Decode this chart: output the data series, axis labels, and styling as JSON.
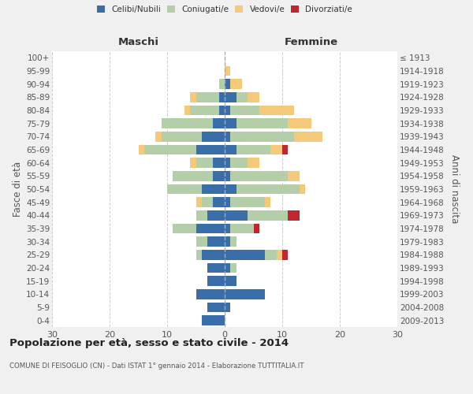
{
  "age_groups": [
    "0-4",
    "5-9",
    "10-14",
    "15-19",
    "20-24",
    "25-29",
    "30-34",
    "35-39",
    "40-44",
    "45-49",
    "50-54",
    "55-59",
    "60-64",
    "65-69",
    "70-74",
    "75-79",
    "80-84",
    "85-89",
    "90-94",
    "95-99",
    "100+"
  ],
  "birth_years": [
    "2009-2013",
    "2004-2008",
    "1999-2003",
    "1994-1998",
    "1989-1993",
    "1984-1988",
    "1979-1983",
    "1974-1978",
    "1969-1973",
    "1964-1968",
    "1959-1963",
    "1954-1958",
    "1949-1953",
    "1944-1948",
    "1939-1943",
    "1934-1938",
    "1929-1933",
    "1924-1928",
    "1919-1923",
    "1914-1918",
    "≤ 1913"
  ],
  "maschi": {
    "celibi": [
      4,
      3,
      5,
      3,
      3,
      4,
      3,
      5,
      3,
      2,
      4,
      2,
      2,
      5,
      4,
      2,
      1,
      1,
      0,
      0,
      0
    ],
    "coniugati": [
      0,
      0,
      0,
      0,
      0,
      1,
      2,
      4,
      2,
      2,
      6,
      7,
      3,
      9,
      7,
      9,
      5,
      4,
      1,
      0,
      0
    ],
    "vedovi": [
      0,
      0,
      0,
      0,
      0,
      0,
      0,
      0,
      0,
      1,
      0,
      0,
      1,
      1,
      1,
      0,
      1,
      1,
      0,
      0,
      0
    ],
    "divorziati": [
      0,
      0,
      0,
      0,
      0,
      0,
      0,
      0,
      0,
      0,
      0,
      0,
      0,
      0,
      0,
      0,
      0,
      0,
      0,
      0,
      0
    ]
  },
  "femmine": {
    "nubili": [
      0,
      1,
      7,
      2,
      1,
      7,
      1,
      1,
      4,
      1,
      2,
      1,
      1,
      2,
      1,
      2,
      1,
      2,
      1,
      0,
      0
    ],
    "coniugate": [
      0,
      0,
      0,
      0,
      1,
      2,
      1,
      4,
      7,
      6,
      11,
      10,
      3,
      6,
      11,
      9,
      5,
      2,
      0,
      0,
      0
    ],
    "vedove": [
      0,
      0,
      0,
      0,
      0,
      1,
      0,
      0,
      0,
      1,
      1,
      2,
      2,
      2,
      5,
      4,
      6,
      2,
      2,
      1,
      0
    ],
    "divorziate": [
      0,
      0,
      0,
      0,
      0,
      1,
      0,
      1,
      2,
      0,
      0,
      0,
      0,
      1,
      0,
      0,
      0,
      0,
      0,
      0,
      0
    ]
  },
  "colors": {
    "celibi_nubili": "#3a6ea8",
    "coniugati": "#b5ceaa",
    "vedovi": "#f5c97a",
    "divorziati": "#c0272d"
  },
  "xlim": 30,
  "title": "Popolazione per età, sesso e stato civile - 2014",
  "subtitle": "COMUNE DI FEISOGLIO (CN) - Dati ISTAT 1° gennaio 2014 - Elaborazione TUTTITALIA.IT",
  "ylabel_left": "Fasce di età",
  "ylabel_right": "Anni di nascita",
  "xlabel_left": "Maschi",
  "xlabel_right": "Femmine",
  "bg_color": "#f0f0f0",
  "plot_bg_color": "#ffffff"
}
